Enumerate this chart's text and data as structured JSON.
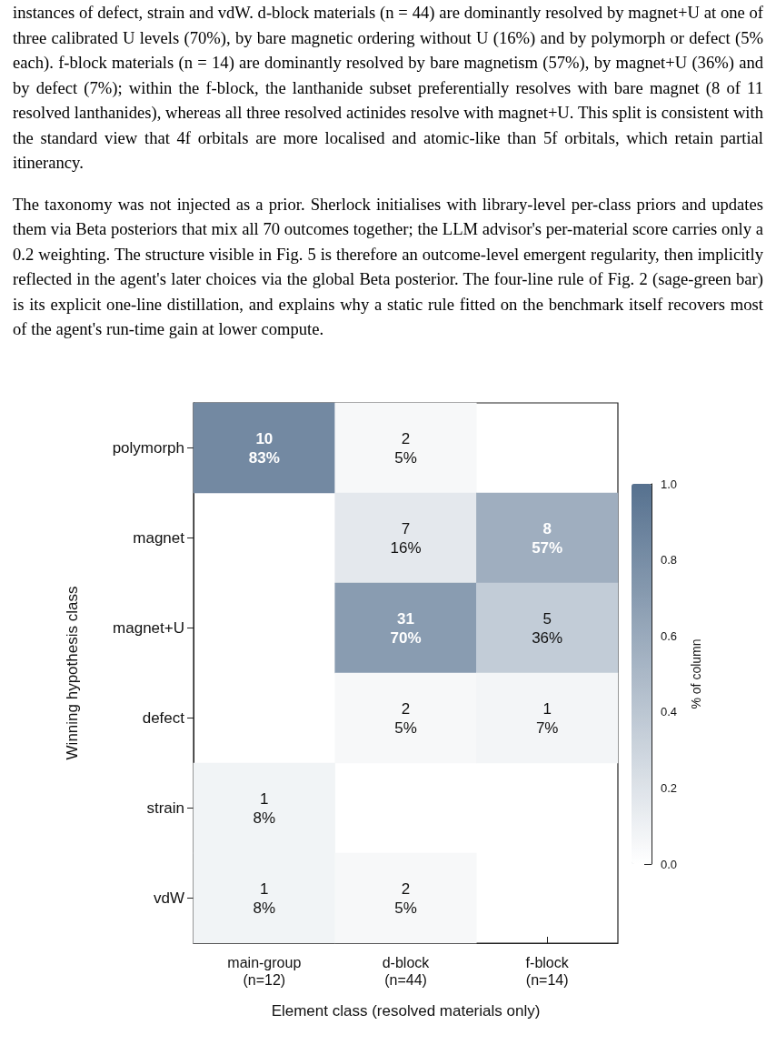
{
  "chart_data": {
    "type": "heatmap",
    "annotations": [
      "instances of defect, strain and vdW. d-block materials (n = 44) are dominantly resolved by magnet+U at one of three calibrated U levels (70%), by bare magnetic ordering without U (16%) and by polymorph or defect (5% each). f-block materials (n = 14) are dominantly resolved by bare magnetism (57%), by magnet+U (36%) and by defect (7%); within the f-block, the lanthanide subset preferentially resolves with bare magnet (8 of 11 resolved lanthanides), whereas all three resolved actinides resolve with magnet+U. This split is consistent with the standard view that 4f orbitals are more localised and atomic-like than 5f orbitals, which retain partial itinerancy.",
      "The taxonomy was not injected as a prior. Sherlock initialises with library-level per-class priors and updates them via Beta posteriors that mix all 70 outcomes together; the LLM advisor's per-material score carries only a 0.2 weighting. The structure visible in Fig. 5 is therefore an outcome-level emergent regularity, then implicitly reflected in the agent's later choices via the global Beta posterior. The four-line rule of Fig. 2 (sage-green bar) is its explicit one-line distillation, and explains why a static rule fitted on the benchmark itself recovers most of the agent's run-time gain at lower compute."
    ],
    "xlabel": "Element class (resolved materials only)",
    "ylabel": "Winning hypothesis class",
    "clabel": "% of column",
    "categories": [
      "main-group\n(n=12)",
      "d-block\n(n=44)",
      "f-block\n(n=14)"
    ],
    "y_categories": [
      "polymorph",
      "magnet",
      "magnet+U",
      "defect",
      "strain",
      "vdW"
    ],
    "cells": [
      [
        0.83,
        0.05,
        null
      ],
      [
        null,
        0.16,
        0.57
      ],
      [
        null,
        0.7,
        0.36
      ],
      [
        null,
        0.05,
        0.07
      ],
      [
        0.08,
        null,
        null
      ],
      [
        0.08,
        0.05,
        null
      ]
    ],
    "cell_labels": [
      [
        "10\n83%",
        "2\n5%",
        null
      ],
      [
        null,
        "7\n16%",
        "8\n57%"
      ],
      [
        null,
        "31\n70%",
        "5\n36%"
      ],
      [
        null,
        "2\n5%",
        "1\n7%"
      ],
      [
        "1\n8%",
        null,
        null
      ],
      [
        "1\n8%",
        "2\n5%",
        null
      ]
    ],
    "clim": [
      0,
      1
    ],
    "cticks": [
      {
        "value": 0,
        "label": "0.0"
      },
      {
        "value": 0.2,
        "label": "0.2"
      },
      {
        "value": 0.4,
        "label": "0.4"
      },
      {
        "value": 0.6,
        "label": "0.6"
      },
      {
        "value": 0.8,
        "label": "0.8"
      },
      {
        "value": 1,
        "label": "1.0"
      }
    ]
  }
}
